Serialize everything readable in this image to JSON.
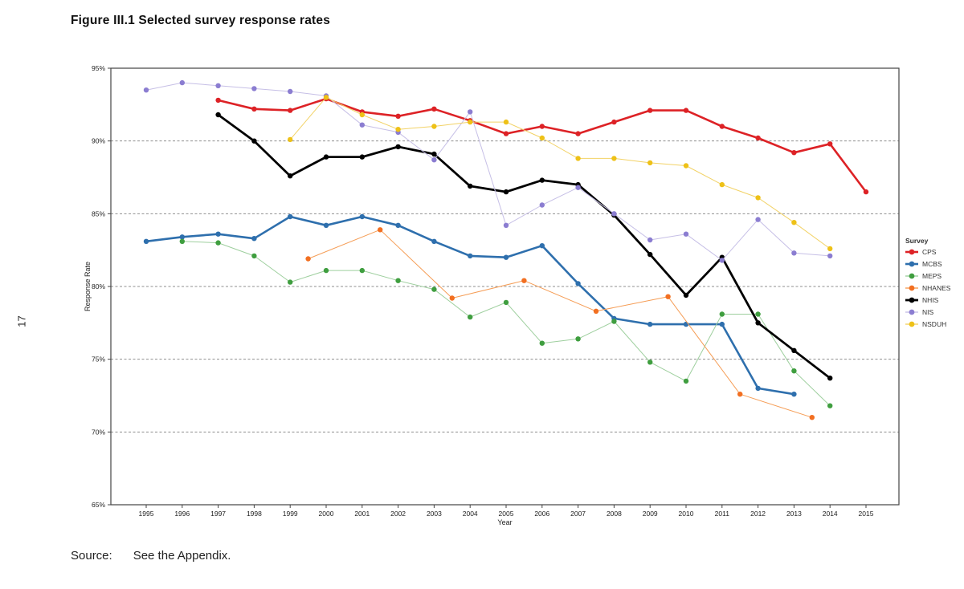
{
  "page": {
    "number": "17"
  },
  "title": "Figure III.1 Selected survey response rates",
  "source": {
    "label": "Source:",
    "text": "See the Appendix."
  },
  "chart_data": {
    "type": "line",
    "title": "Figure III.1 Selected survey response rates",
    "xlabel": "Year",
    "ylabel": "Response Rate",
    "ylim": [
      65,
      95
    ],
    "xlim": [
      1994,
      2016
    ],
    "grid": "horizontal-dashed",
    "legend_position": "right",
    "legend_title": "Survey",
    "x_ticks": [
      1995,
      1996,
      1997,
      1998,
      1999,
      2000,
      2001,
      2002,
      2003,
      2004,
      2005,
      2006,
      2007,
      2008,
      2009,
      2010,
      2011,
      2012,
      2013,
      2014,
      2015
    ],
    "y_ticks": [
      95,
      90,
      85,
      80,
      75,
      70,
      65
    ],
    "y_tick_labels": [
      "95%",
      "90%",
      "85%",
      "80%",
      "75%",
      "70%",
      "65%"
    ],
    "series": [
      {
        "name": "CPS",
        "color": "#dd2226",
        "line_color": "#dd2226",
        "line_width": 2.6,
        "points": [
          [
            1997,
            92.8
          ],
          [
            1998,
            92.2
          ],
          [
            1999,
            92.1
          ],
          [
            2000,
            92.9
          ],
          [
            2001,
            92.0
          ],
          [
            2002,
            91.7
          ],
          [
            2003,
            92.2
          ],
          [
            2004,
            91.4
          ],
          [
            2005,
            90.5
          ],
          [
            2006,
            91.0
          ],
          [
            2007,
            90.5
          ],
          [
            2008,
            91.3
          ],
          [
            2009,
            92.1
          ],
          [
            2010,
            92.1
          ],
          [
            2011,
            91.0
          ],
          [
            2012,
            90.2
          ],
          [
            2013,
            89.2
          ],
          [
            2014,
            89.8
          ],
          [
            2015,
            86.5
          ]
        ]
      },
      {
        "name": "MCBS",
        "color": "#2e6fad",
        "line_color": "#2e6fad",
        "line_width": 2.6,
        "points": [
          [
            1995,
            83.1
          ],
          [
            1996,
            83.4
          ],
          [
            1997,
            83.6
          ],
          [
            1998,
            83.3
          ],
          [
            1999,
            84.8
          ],
          [
            2000,
            84.2
          ],
          [
            2001,
            84.8
          ],
          [
            2002,
            84.2
          ],
          [
            2003,
            83.1
          ],
          [
            2004,
            82.1
          ],
          [
            2005,
            82.0
          ],
          [
            2006,
            82.8
          ],
          [
            2007,
            80.2
          ],
          [
            2008,
            77.8
          ],
          [
            2009,
            77.4
          ],
          [
            2010,
            77.4
          ],
          [
            2011,
            77.4
          ],
          [
            2012,
            73.0
          ],
          [
            2013,
            72.6
          ]
        ]
      },
      {
        "name": "MEPS",
        "color": "#3f9e3f",
        "line_color": "#9ecf9e",
        "line_width": 1,
        "points": [
          [
            1996,
            83.1
          ],
          [
            1997,
            83.0
          ],
          [
            1998,
            82.1
          ],
          [
            1999,
            80.3
          ],
          [
            2000,
            81.1
          ],
          [
            2001,
            81.1
          ],
          [
            2002,
            80.4
          ],
          [
            2003,
            79.8
          ],
          [
            2004,
            77.9
          ],
          [
            2005,
            78.9
          ],
          [
            2006,
            76.1
          ],
          [
            2007,
            76.4
          ],
          [
            2008,
            77.6
          ],
          [
            2009,
            74.8
          ],
          [
            2010,
            73.5
          ],
          [
            2011,
            78.1
          ],
          [
            2012,
            78.1
          ],
          [
            2013,
            74.2
          ],
          [
            2014,
            71.8
          ]
        ]
      },
      {
        "name": "NHANES",
        "color": "#f26f21",
        "line_color": "#f59d56",
        "line_width": 1,
        "points": [
          [
            1999.5,
            81.9
          ],
          [
            2001.5,
            83.9
          ],
          [
            2003.5,
            79.2
          ],
          [
            2005.5,
            80.4
          ],
          [
            2007.5,
            78.3
          ],
          [
            2009.5,
            79.3
          ],
          [
            2011.5,
            72.6
          ],
          [
            2013.5,
            71.0
          ]
        ]
      },
      {
        "name": "NHIS",
        "color": "#000000",
        "line_color": "#000000",
        "line_width": 2.8,
        "points": [
          [
            1997,
            91.8
          ],
          [
            1998,
            90.0
          ],
          [
            1999,
            87.6
          ],
          [
            2000,
            88.9
          ],
          [
            2001,
            88.9
          ],
          [
            2002,
            89.6
          ],
          [
            2003,
            89.1
          ],
          [
            2004,
            86.9
          ],
          [
            2005,
            86.5
          ],
          [
            2006,
            87.3
          ],
          [
            2007,
            87.0
          ],
          [
            2008,
            84.9
          ],
          [
            2009,
            82.2
          ],
          [
            2010,
            79.4
          ],
          [
            2011,
            82.0
          ],
          [
            2012,
            77.5
          ],
          [
            2013,
            75.6
          ],
          [
            2014,
            73.7
          ]
        ]
      },
      {
        "name": "NIS",
        "color": "#8b7dd1",
        "line_color": "#c6bfe6",
        "line_width": 1,
        "points": [
          [
            1995,
            93.5
          ],
          [
            1996,
            94.0
          ],
          [
            1997,
            93.8
          ],
          [
            1998,
            93.6
          ],
          [
            1999,
            93.4
          ],
          [
            2000,
            93.1
          ],
          [
            2001,
            91.1
          ],
          [
            2002,
            90.6
          ],
          [
            2003,
            88.7
          ],
          [
            2004,
            92.0
          ],
          [
            2005,
            84.2
          ],
          [
            2006,
            85.6
          ],
          [
            2007,
            86.8
          ],
          [
            2008,
            85.0
          ],
          [
            2009,
            83.2
          ],
          [
            2010,
            83.6
          ],
          [
            2011,
            81.8
          ],
          [
            2012,
            84.6
          ],
          [
            2013,
            82.3
          ],
          [
            2014,
            82.1
          ]
        ]
      },
      {
        "name": "NSDUH",
        "color": "#eec117",
        "line_color": "#f2d266",
        "line_width": 1,
        "points": [
          [
            1999,
            90.1
          ],
          [
            2000,
            93.0
          ],
          [
            2001,
            91.8
          ],
          [
            2002,
            90.8
          ],
          [
            2003,
            91.0
          ],
          [
            2004,
            91.3
          ],
          [
            2005,
            91.3
          ],
          [
            2006,
            90.2
          ],
          [
            2007,
            88.8
          ],
          [
            2008,
            88.8
          ],
          [
            2009,
            88.5
          ],
          [
            2010,
            88.3
          ],
          [
            2011,
            87.0
          ],
          [
            2012,
            86.1
          ],
          [
            2013,
            84.4
          ],
          [
            2014,
            82.6
          ]
        ]
      }
    ]
  }
}
